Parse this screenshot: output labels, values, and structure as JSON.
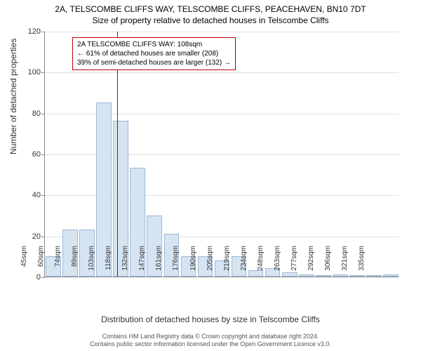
{
  "title_main": "2A, TELSCOMBE CLIFFS WAY, TELSCOMBE CLIFFS, PEACEHAVEN, BN10 7DT",
  "title_sub": "Size of property relative to detached houses in Telscombe Cliffs",
  "chart": {
    "type": "bar",
    "ylabel": "Number of detached properties",
    "xlabel": "Distribution of detached houses by size in Telscombe Cliffs",
    "ylim": [
      0,
      120
    ],
    "ytick_step": 20,
    "background_color": "#ffffff",
    "grid_color": "#e0e0e0",
    "bar_fill": "#d6e4f2",
    "bar_border": "#9ab8d6",
    "marker_color": "#c00000",
    "categories": [
      "45sqm",
      "60sqm",
      "74sqm",
      "89sqm",
      "103sqm",
      "118sqm",
      "132sqm",
      "147sqm",
      "161sqm",
      "176sqm",
      "190sqm",
      "205sqm",
      "219sqm",
      "234sqm",
      "248sqm",
      "263sqm",
      "277sqm",
      "292sqm",
      "306sqm",
      "321sqm",
      "335sqm"
    ],
    "values": [
      10,
      23,
      23,
      85,
      76,
      53,
      30,
      21,
      10,
      10,
      8,
      10,
      3,
      4,
      2,
      1,
      0,
      1,
      0,
      0,
      1
    ],
    "bar_width": 0.9,
    "marker_index": 4.3
  },
  "annotation": {
    "line1": "2A TELSCOMBE CLIFFS WAY: 108sqm",
    "line2": "← 61% of detached houses are smaller (208)",
    "line3": "39% of semi-detached houses are larger (132) →"
  },
  "footer": {
    "line1": "Contains HM Land Registry data © Crown copyright and database right 2024.",
    "line2": "Contains public sector information licensed under the Open Government Licence v3.0."
  }
}
